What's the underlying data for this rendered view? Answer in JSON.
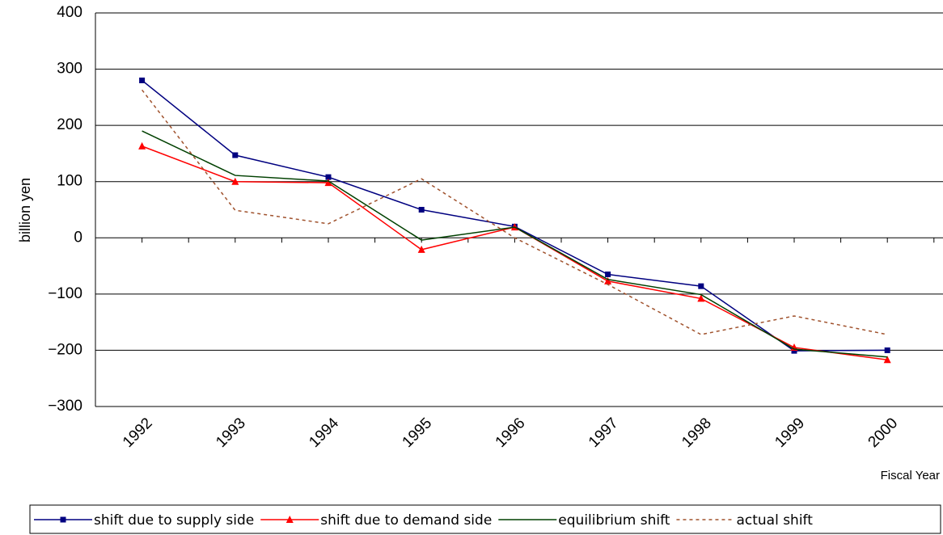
{
  "chart_data": {
    "type": "line",
    "y_label": "billion yen",
    "x_label": "Fiscal Year",
    "categories": [
      "1992",
      "1993",
      "1994",
      "1995",
      "1996",
      "1997",
      "1998",
      "1999",
      "2000"
    ],
    "series": [
      {
        "name": "shift due to supply side",
        "color": "#000080",
        "marker": "square",
        "dash": "solid",
        "values": [
          280,
          147,
          108,
          50,
          20,
          -65,
          -86,
          -201,
          -200
        ]
      },
      {
        "name": "shift due to demand side",
        "color": "#ff0000",
        "marker": "triangle",
        "dash": "solid",
        "values": [
          163,
          100,
          98,
          -21,
          19,
          -77,
          -108,
          -195,
          -217
        ]
      },
      {
        "name": "equilibrium shift",
        "color": "#004000",
        "marker": "none",
        "dash": "solid",
        "values": [
          190,
          111,
          101,
          -4,
          19,
          -74,
          -101,
          -198,
          -212
        ]
      },
      {
        "name": "actual shift",
        "color": "#a0522d",
        "marker": "none",
        "dash": "dotted",
        "values": [
          263,
          49,
          25,
          105,
          0,
          -83,
          -172,
          -139,
          -172
        ]
      }
    ],
    "ylim": [
      -300,
      400
    ],
    "yticks": [
      {
        "value": -300,
        "label": "−300"
      },
      {
        "value": -200,
        "label": "−200"
      },
      {
        "value": -100,
        "label": "−100"
      },
      0,
      100,
      200,
      300,
      400
    ],
    "grid": true,
    "legend": "bottom"
  }
}
